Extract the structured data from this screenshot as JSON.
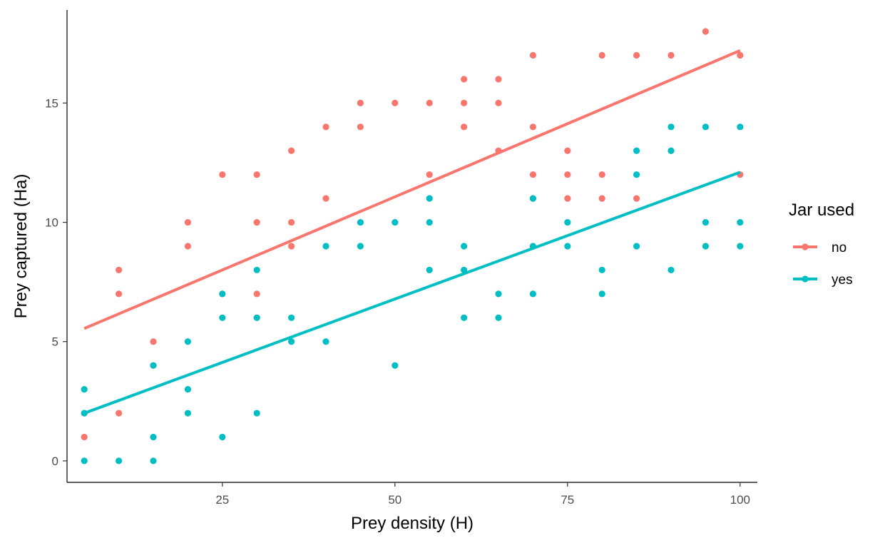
{
  "chart_data": {
    "type": "scatter",
    "xlabel": "Prey density  (H)",
    "ylabel": "Prey captured  (Ha)",
    "xlim": [
      2.5,
      102.5
    ],
    "ylim": [
      -0.9,
      18.9
    ],
    "x_ticks": [
      25,
      50,
      75,
      100
    ],
    "y_ticks": [
      0,
      5,
      10,
      15
    ],
    "grid": false,
    "legend": {
      "title": "Jar used",
      "position": "right",
      "entries": [
        "no",
        "yes"
      ]
    },
    "series": [
      {
        "name": "no",
        "color": "#F8766D",
        "points": [
          [
            5,
            2
          ],
          [
            5,
            1
          ],
          [
            10,
            8
          ],
          [
            10,
            7
          ],
          [
            10,
            2
          ],
          [
            15,
            5
          ],
          [
            15,
            4
          ],
          [
            20,
            10
          ],
          [
            20,
            9
          ],
          [
            25,
            12
          ],
          [
            25,
            7
          ],
          [
            30,
            12
          ],
          [
            30,
            10
          ],
          [
            30,
            7
          ],
          [
            30,
            6
          ],
          [
            35,
            13
          ],
          [
            35,
            10
          ],
          [
            35,
            9
          ],
          [
            40,
            14
          ],
          [
            40,
            11
          ],
          [
            45,
            15
          ],
          [
            45,
            14
          ],
          [
            50,
            15
          ],
          [
            55,
            15
          ],
          [
            55,
            12
          ],
          [
            60,
            16
          ],
          [
            60,
            15
          ],
          [
            60,
            14
          ],
          [
            65,
            16
          ],
          [
            65,
            15
          ],
          [
            65,
            13
          ],
          [
            70,
            17
          ],
          [
            70,
            14
          ],
          [
            70,
            12
          ],
          [
            70,
            11
          ],
          [
            75,
            13
          ],
          [
            75,
            12
          ],
          [
            75,
            11
          ],
          [
            80,
            17
          ],
          [
            80,
            12
          ],
          [
            80,
            11
          ],
          [
            85,
            17
          ],
          [
            85,
            11
          ],
          [
            90,
            17
          ],
          [
            95,
            18
          ],
          [
            100,
            17
          ],
          [
            100,
            12
          ]
        ],
        "fit": [
          [
            5,
            5.55
          ],
          [
            100,
            17.2
          ]
        ]
      },
      {
        "name": "yes",
        "color": "#00BFC4",
        "points": [
          [
            5,
            3
          ],
          [
            5,
            2
          ],
          [
            5,
            0
          ],
          [
            10,
            0
          ],
          [
            15,
            4
          ],
          [
            15,
            1
          ],
          [
            15,
            0
          ],
          [
            20,
            5
          ],
          [
            20,
            3
          ],
          [
            20,
            2
          ],
          [
            25,
            7
          ],
          [
            25,
            6
          ],
          [
            25,
            1
          ],
          [
            30,
            8
          ],
          [
            30,
            6
          ],
          [
            30,
            2
          ],
          [
            35,
            6
          ],
          [
            35,
            5
          ],
          [
            40,
            9
          ],
          [
            40,
            5
          ],
          [
            45,
            10
          ],
          [
            45,
            9
          ],
          [
            50,
            10
          ],
          [
            50,
            4
          ],
          [
            55,
            11
          ],
          [
            55,
            10
          ],
          [
            55,
            8
          ],
          [
            60,
            9
          ],
          [
            60,
            8
          ],
          [
            60,
            6
          ],
          [
            65,
            7
          ],
          [
            65,
            6
          ],
          [
            70,
            11
          ],
          [
            70,
            9
          ],
          [
            70,
            7
          ],
          [
            75,
            10
          ],
          [
            75,
            9
          ],
          [
            80,
            8
          ],
          [
            80,
            7
          ],
          [
            85,
            13
          ],
          [
            85,
            12
          ],
          [
            85,
            9
          ],
          [
            90,
            14
          ],
          [
            90,
            13
          ],
          [
            90,
            8
          ],
          [
            95,
            14
          ],
          [
            95,
            10
          ],
          [
            95,
            9
          ],
          [
            100,
            14
          ],
          [
            100,
            10
          ],
          [
            100,
            9
          ]
        ],
        "fit": [
          [
            5,
            2.0
          ],
          [
            100,
            12.1
          ]
        ]
      }
    ]
  }
}
